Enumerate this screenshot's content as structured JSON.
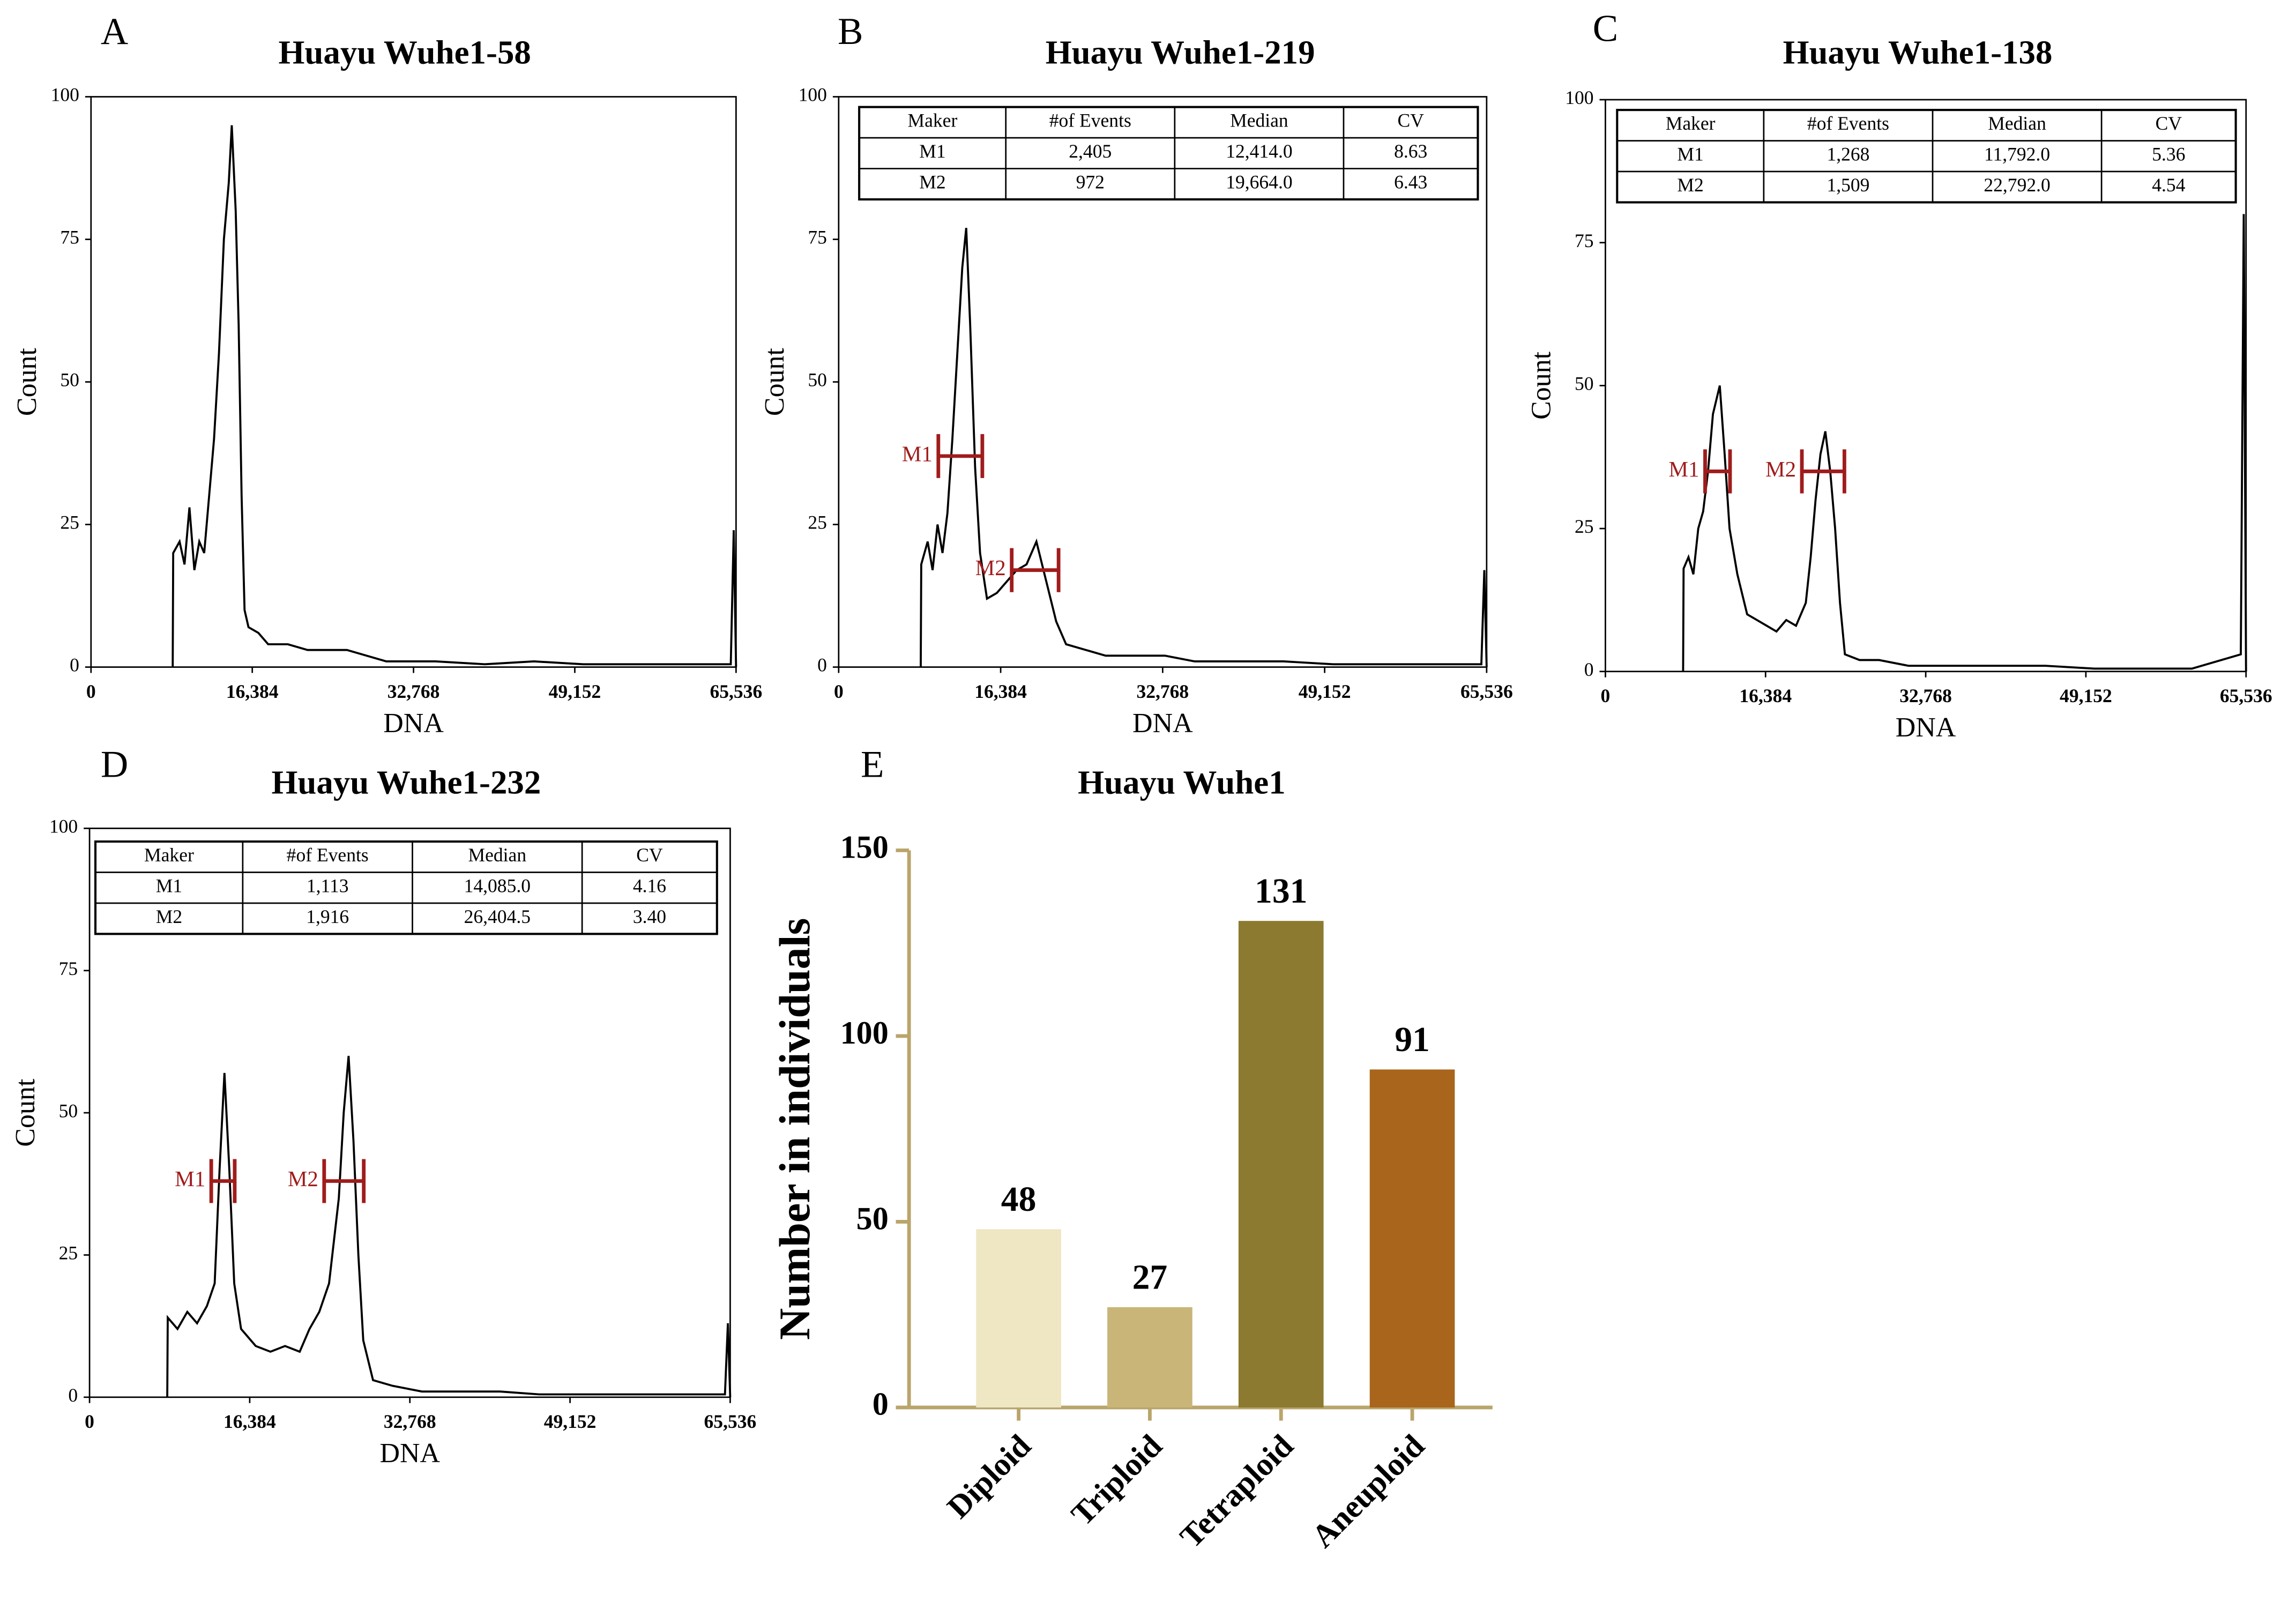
{
  "chart_data": [
    {
      "type": "line",
      "panel_label": "A",
      "title": "Huayu Wuhe1-58",
      "xlabel": "DNA",
      "ylabel": "Count",
      "color": "#000000",
      "xlim": [
        0,
        65536
      ],
      "xticks": [
        0,
        {
          "value": 16384,
          "label": "16,384"
        },
        {
          "value": 32768,
          "label": "32,768"
        },
        {
          "value": 49152,
          "label": "49,152"
        },
        {
          "value": 65536,
          "label": "65,536"
        }
      ],
      "ylim": [
        0,
        100
      ],
      "yticks": [
        0,
        25,
        50,
        75,
        100
      ],
      "x": [
        8300,
        8350,
        9000,
        9500,
        10000,
        10500,
        11000,
        11500,
        12000,
        12500,
        13000,
        13500,
        14000,
        14300,
        14700,
        15000,
        15300,
        15600,
        16000,
        17000,
        18000,
        20000,
        22000,
        24000,
        26000,
        28000,
        30000,
        35000,
        40000,
        45000,
        50000,
        55000,
        60000,
        65000,
        65300,
        65536
      ],
      "values": [
        0,
        20,
        22,
        18,
        28,
        17,
        22,
        20,
        30,
        40,
        55,
        75,
        85,
        95,
        80,
        60,
        30,
        10,
        7,
        6,
        4,
        4,
        3,
        3,
        3,
        2,
        1,
        1,
        0.5,
        1,
        0.5,
        0.5,
        0.5,
        0.5,
        24,
        0
      ]
    },
    {
      "type": "line",
      "panel_label": "B",
      "title": "Huayu Wuhe1-219",
      "xlabel": "DNA",
      "ylabel": "Count",
      "color": "#000000",
      "xlim": [
        0,
        65536
      ],
      "xticks": [
        0,
        {
          "value": 16384,
          "label": "16,384"
        },
        {
          "value": 32768,
          "label": "32,768"
        },
        {
          "value": 49152,
          "label": "49,152"
        },
        {
          "value": 65536,
          "label": "65,536"
        }
      ],
      "ylim": [
        0,
        100
      ],
      "yticks": [
        0,
        25,
        50,
        75,
        100
      ],
      "x": [
        8300,
        8350,
        9000,
        9500,
        10000,
        10500,
        11000,
        11500,
        12000,
        12500,
        12900,
        13300,
        13800,
        14300,
        15000,
        16000,
        17000,
        18000,
        19000,
        20000,
        21000,
        22000,
        23000,
        25000,
        27000,
        30000,
        33000,
        36000,
        40000,
        45000,
        50000,
        55000,
        60000,
        65000,
        65300,
        65536
      ],
      "values": [
        0,
        18,
        22,
        17,
        25,
        20,
        27,
        40,
        55,
        70,
        77,
        60,
        35,
        20,
        12,
        13,
        15,
        17,
        18,
        22,
        15,
        8,
        4,
        3,
        2,
        2,
        2,
        1,
        1,
        1,
        0.5,
        0.5,
        0.5,
        0.5,
        17,
        0
      ],
      "table": {
        "columns": [
          "Maker",
          "#of Events",
          "Median",
          "CV"
        ],
        "rows": [
          [
            "M1",
            "2,405",
            "12,414.0",
            "8.63"
          ],
          [
            "M2",
            "972",
            "19,664.0",
            "6.43"
          ]
        ]
      },
      "marker_color": "#a01c1c",
      "markers": [
        {
          "name": "M1",
          "x": [
            10080,
            14530
          ],
          "y": 37
        },
        {
          "name": "M2",
          "x": [
            17500,
            22240
          ],
          "y": 17
        }
      ]
    },
    {
      "type": "line",
      "panel_label": "C",
      "title": "Huayu Wuhe1-138",
      "xlabel": "DNA",
      "ylabel": "Count",
      "color": "#000000",
      "xlim": [
        0,
        65536
      ],
      "xticks": [
        0,
        {
          "value": 16384,
          "label": "16,384"
        },
        {
          "value": 32768,
          "label": "32,768"
        },
        {
          "value": 49152,
          "label": "49,152"
        },
        {
          "value": 65536,
          "label": "65,536"
        }
      ],
      "ylim": [
        0,
        100
      ],
      "yticks": [
        0,
        25,
        50,
        75,
        100
      ],
      "x": [
        7950,
        8000,
        8500,
        9000,
        9500,
        10000,
        10500,
        11000,
        11700,
        12200,
        12700,
        13500,
        14500,
        15500,
        16500,
        17500,
        18500,
        19500,
        20500,
        21000,
        21500,
        22000,
        22500,
        23000,
        23500,
        24000,
        24500,
        26000,
        28000,
        31000,
        35000,
        40000,
        45000,
        50000,
        55000,
        60000,
        65000,
        65300,
        65536
      ],
      "values": [
        0,
        18,
        20,
        17,
        25,
        28,
        35,
        45,
        50,
        38,
        25,
        17,
        10,
        9,
        8,
        7,
        9,
        8,
        12,
        20,
        30,
        38,
        42,
        35,
        25,
        12,
        3,
        2,
        2,
        1,
        1,
        1,
        1,
        0.5,
        0.5,
        0.5,
        3,
        80,
        0
      ],
      "table": {
        "columns": [
          "Maker",
          "#of Events",
          "Median",
          "CV"
        ],
        "rows": [
          [
            "M1",
            "1,268",
            "11,792.0",
            "5.36"
          ],
          [
            "M2",
            "1,509",
            "22,792.0",
            "4.54"
          ]
        ]
      },
      "marker_color": "#a01c1c",
      "markers": [
        {
          "name": "M1",
          "x": [
            10200,
            12750
          ],
          "y": 35
        },
        {
          "name": "M2",
          "x": [
            20100,
            24450
          ],
          "y": 35
        }
      ]
    },
    {
      "type": "line",
      "panel_label": "D",
      "title": "Huayu Wuhe1-232",
      "xlabel": "DNA",
      "ylabel": "Count",
      "color": "#000000",
      "xlim": [
        0,
        65536
      ],
      "xticks": [
        0,
        {
          "value": 16384,
          "label": "16,384"
        },
        {
          "value": 32768,
          "label": "32,768"
        },
        {
          "value": 49152,
          "label": "49,152"
        },
        {
          "value": 65536,
          "label": "65,536"
        }
      ],
      "ylim": [
        0,
        100
      ],
      "yticks": [
        0,
        25,
        50,
        75,
        100
      ],
      "x": [
        7950,
        8000,
        9000,
        10000,
        11000,
        12000,
        12800,
        13300,
        13800,
        14300,
        14800,
        15500,
        17000,
        18500,
        20000,
        21500,
        22500,
        23500,
        24500,
        25500,
        26000,
        26500,
        27000,
        27500,
        28000,
        29000,
        31000,
        34000,
        38000,
        42000,
        46000,
        50000,
        55000,
        60000,
        65000,
        65300,
        65536
      ],
      "values": [
        0,
        14,
        12,
        15,
        13,
        16,
        20,
        40,
        57,
        40,
        20,
        12,
        9,
        8,
        9,
        8,
        12,
        15,
        20,
        35,
        50,
        60,
        45,
        25,
        10,
        3,
        2,
        1,
        1,
        1,
        0.5,
        0.5,
        0.5,
        0.5,
        0.5,
        13,
        0
      ],
      "table": {
        "columns": [
          "Maker",
          "#of Events",
          "Median",
          "CV"
        ],
        "rows": [
          [
            "M1",
            "1,113",
            "14,085.0",
            "4.16"
          ],
          [
            "M2",
            "1,916",
            "26,404.5",
            "3.40"
          ]
        ]
      },
      "marker_color": "#a01c1c",
      "markers": [
        {
          "name": "M1",
          "x": [
            12450,
            14850
          ],
          "y": 38
        },
        {
          "name": "M2",
          "x": [
            24000,
            28050
          ],
          "y": 38
        }
      ]
    },
    {
      "type": "bar",
      "panel_label": "E",
      "title": "Huayu Wuhe1",
      "ylabel": "Number in individuals",
      "categories": [
        "Diploid",
        "Triploid",
        "Tetraploid",
        "Aneuploid"
      ],
      "values": [
        48,
        27,
        131,
        91
      ],
      "colors": [
        "#efe6c4",
        "#c9b577",
        "#8b7a2f",
        "#a8651b"
      ],
      "axis_color": "#b9a56b",
      "ylim": [
        0,
        150
      ],
      "yticks": [
        0,
        50,
        100,
        150
      ]
    }
  ]
}
